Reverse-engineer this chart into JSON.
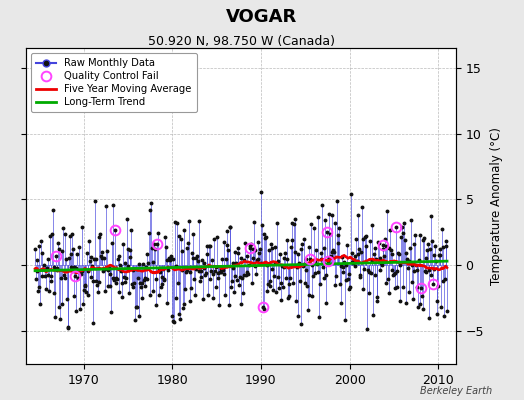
{
  "title": "VOGAR",
  "subtitle": "50.920 N, 98.750 W (Canada)",
  "ylabel": "Temperature Anomaly (°C)",
  "watermark": "Berkeley Earth",
  "start_year": 1964.5,
  "end_year": 2011.0,
  "xlim": [
    1963.5,
    2012.0
  ],
  "ylim": [
    -7.5,
    16.5
  ],
  "yticks": [
    -5,
    0,
    5,
    10,
    15
  ],
  "xticks": [
    1970,
    1980,
    1990,
    2000,
    2010
  ],
  "background_color": "#e8e8e8",
  "plot_bg_color": "#ffffff",
  "line_color": "#4444dd",
  "dot_color": "#111111",
  "ma_color": "#ee0000",
  "trend_color": "#00aa00",
  "qc_color": "#ff44ff",
  "seed": 7,
  "n_months": 558,
  "trend_slope": 0.022,
  "trend_intercept": -0.55,
  "ma_window": 60,
  "spike_scale": 3.5,
  "noise_scale": 1.6
}
